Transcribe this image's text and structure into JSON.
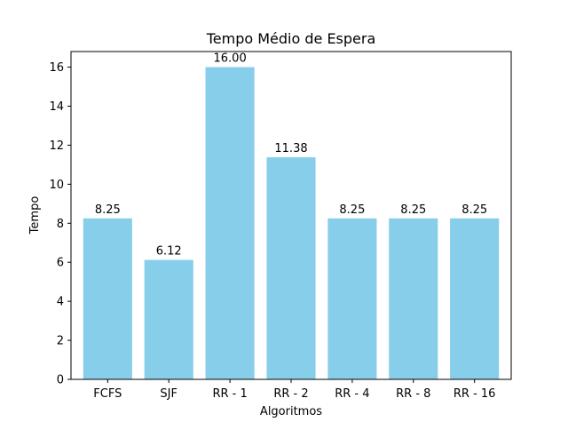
{
  "chart_data": {
    "type": "bar",
    "title": "Tempo Médio de Espera",
    "xlabel": "Algoritmos",
    "ylabel": "Tempo",
    "categories": [
      "FCFS",
      "SJF",
      "RR - 1",
      "RR - 2",
      "RR - 4",
      "RR - 8",
      "RR - 16"
    ],
    "values": [
      8.25,
      6.12,
      16.0,
      11.38,
      8.25,
      8.25,
      8.25
    ],
    "data_labels": [
      "8.25",
      "6.12",
      "16.00",
      "11.38",
      "8.25",
      "8.25",
      "8.25"
    ],
    "ylim": [
      0,
      16.8
    ],
    "yticks": [
      0,
      2,
      4,
      6,
      8,
      10,
      12,
      14,
      16
    ],
    "grid": false,
    "bar_color": "#87ceeb"
  }
}
